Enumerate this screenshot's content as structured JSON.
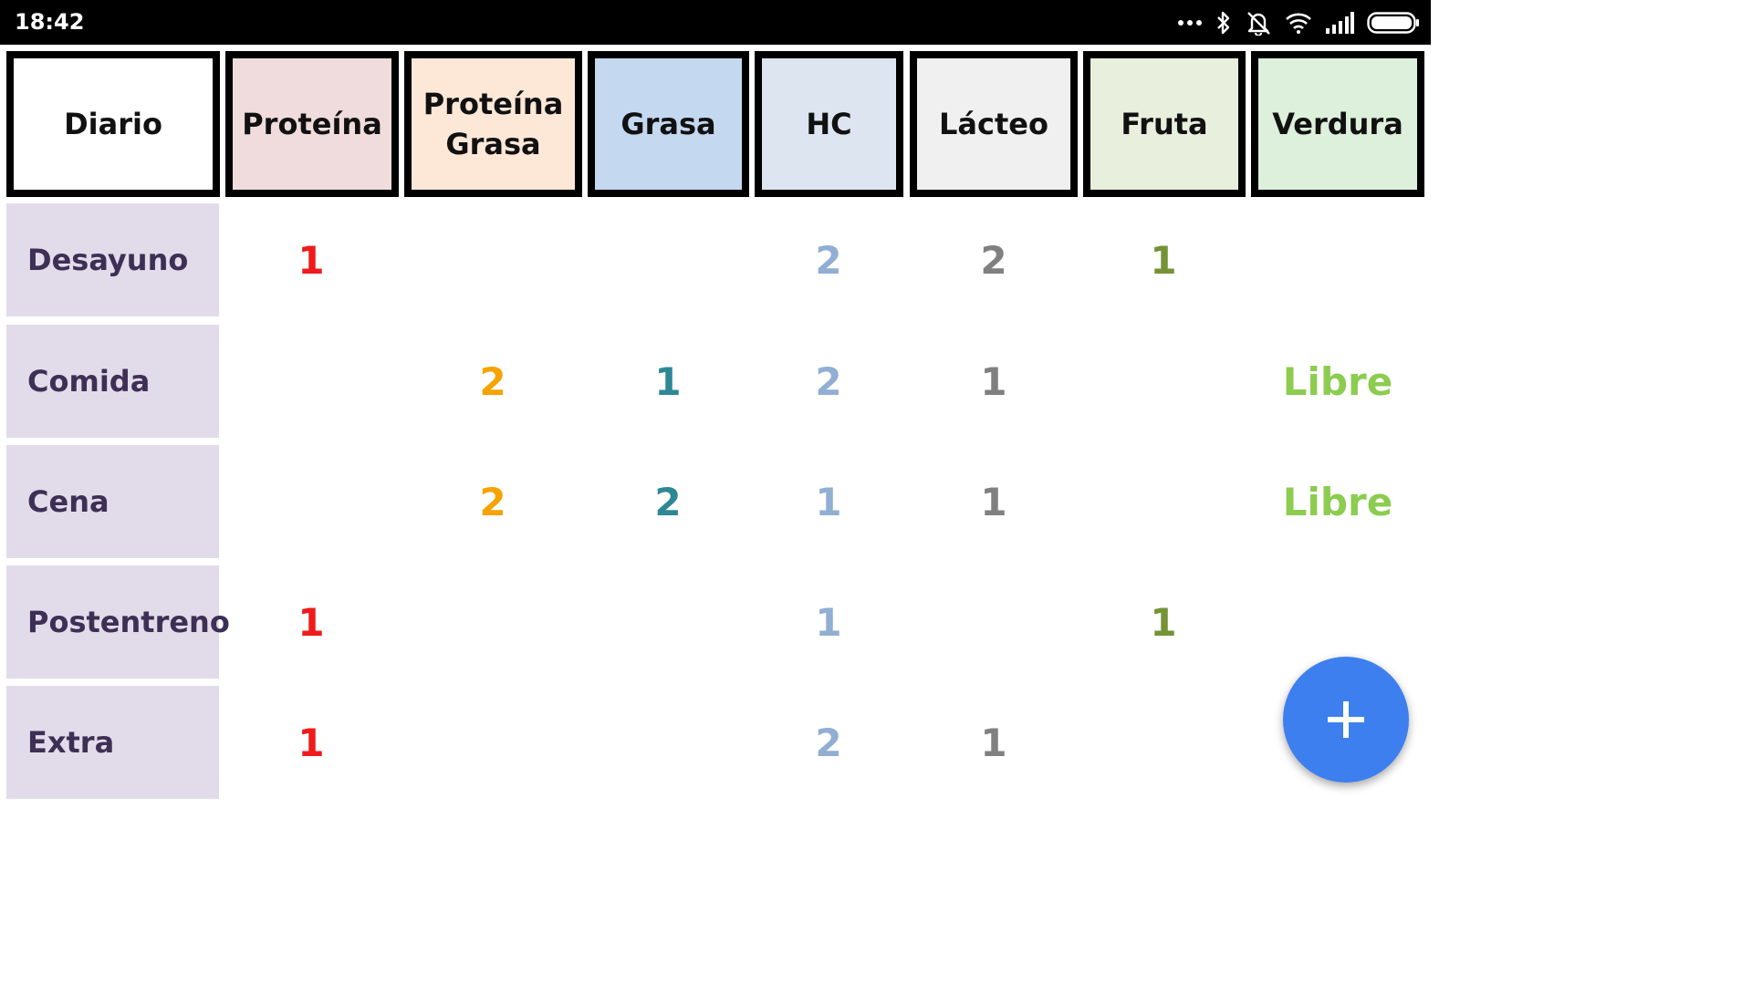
{
  "status_bar": {
    "time": "18:42",
    "icons": [
      "more-dots-icon",
      "bluetooth-icon",
      "alarm-off-icon",
      "wifi-icon",
      "signal-icon",
      "battery-icon"
    ]
  },
  "table": {
    "columns": [
      {
        "key": "diario",
        "label": "Diario",
        "bg": "#ffffff"
      },
      {
        "key": "proteina",
        "label": "Proteína",
        "bg": "#f0dcdc"
      },
      {
        "key": "proteina_grasa",
        "label": "Proteína\nGrasa",
        "bg": "#fde8d8"
      },
      {
        "key": "grasa",
        "label": "Grasa",
        "bg": "#c4d8f0"
      },
      {
        "key": "hc",
        "label": "HC",
        "bg": "#dce5f0"
      },
      {
        "key": "lacteo",
        "label": "Lácteo",
        "bg": "#f0f0f0"
      },
      {
        "key": "fruta",
        "label": "Fruta",
        "bg": "#e8efdc"
      },
      {
        "key": "verdura",
        "label": "Verdura",
        "bg": "#dcf0dc"
      }
    ],
    "value_colors": {
      "proteina": "#ee1c1c",
      "proteina_grasa": "#f5a300",
      "grasa": "#2e8794",
      "hc": "#91aed3",
      "lacteo": "#808080",
      "fruta": "#759335",
      "verdura": "#8ccc50"
    },
    "rows": [
      {
        "label": "Desayuno",
        "proteina": "1",
        "proteina_grasa": "",
        "grasa": "",
        "hc": "2",
        "lacteo": "2",
        "fruta": "1",
        "verdura": ""
      },
      {
        "label": "Comida",
        "proteina": "",
        "proteina_grasa": "2",
        "grasa": "1",
        "hc": "2",
        "lacteo": "1",
        "fruta": "",
        "verdura": "Libre"
      },
      {
        "label": "Cena",
        "proteina": "",
        "proteina_grasa": "2",
        "grasa": "2",
        "hc": "1",
        "lacteo": "1",
        "fruta": "",
        "verdura": "Libre"
      },
      {
        "label": "Postentreno",
        "proteina": "1",
        "proteina_grasa": "",
        "grasa": "",
        "hc": "1",
        "lacteo": "",
        "fruta": "1",
        "verdura": ""
      },
      {
        "label": "Extra",
        "proteina": "1",
        "proteina_grasa": "",
        "grasa": "",
        "hc": "2",
        "lacteo": "1",
        "fruta": "",
        "verdura": ""
      }
    ]
  },
  "fab": {
    "icon": "plus-icon",
    "color": "#3d7fef"
  }
}
